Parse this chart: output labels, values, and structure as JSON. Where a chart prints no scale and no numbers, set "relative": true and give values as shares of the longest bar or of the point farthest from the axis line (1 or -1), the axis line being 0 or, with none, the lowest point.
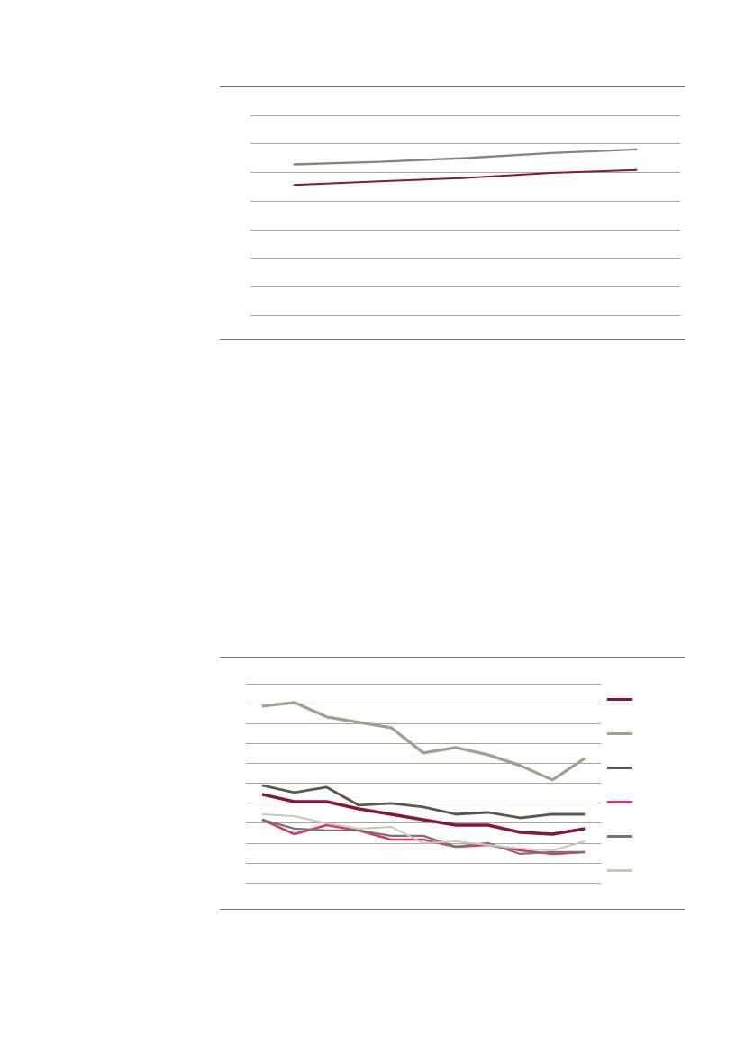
{
  "chart_data": [
    {
      "type": "line",
      "relative": true,
      "grid": "y",
      "categories": [
        null,
        null,
        null,
        null,
        null
      ],
      "series": [
        {
          "color": "#85857a",
          "values": [
            0.91,
            0.926,
            0.948,
            0.978,
            1
          ]
        },
        {
          "color": "#8b1538",
          "values": [
            0.786,
            0.808,
            0.828,
            0.858,
            0.876
          ]
        }
      ]
    },
    {
      "type": "line",
      "relative": true,
      "grid": "y",
      "categories": [
        null,
        null,
        null,
        null,
        null,
        null,
        null,
        null,
        null,
        null,
        null
      ],
      "series": [
        {
          "color": "#8b1538",
          "values": [
            0.49,
            0.45,
            0.45,
            0.41,
            0.38,
            0.35,
            0.32,
            0.32,
            0.28,
            0.27,
            0.3
          ]
        },
        {
          "color": "#a0a08c",
          "values": [
            0.98,
            1,
            0.92,
            0.89,
            0.86,
            0.72,
            0.75,
            0.71,
            0.65,
            0.57,
            0.69
          ]
        },
        {
          "color": "#5a5a4b",
          "values": [
            0.54,
            0.5,
            0.53,
            0.43,
            0.44,
            0.42,
            0.38,
            0.39,
            0.36,
            0.38,
            0.38
          ]
        },
        {
          "color": "#e0307a",
          "values": [
            0.35,
            0.27,
            0.32,
            0.29,
            0.24,
            0.24,
            0.2,
            0.21,
            0.18,
            0.16,
            0.17
          ]
        },
        {
          "color": "#787868",
          "values": [
            0.35,
            0.3,
            0.29,
            0.29,
            0.26,
            0.26,
            0.2,
            0.22,
            0.16,
            0.17,
            0.17
          ]
        },
        {
          "color": "#c8c8b4",
          "values": [
            0.38,
            0.37,
            0.33,
            0.3,
            0.31,
            0.22,
            0.23,
            0.21,
            0.19,
            0.18,
            0.23
          ]
        }
      ]
    }
  ]
}
